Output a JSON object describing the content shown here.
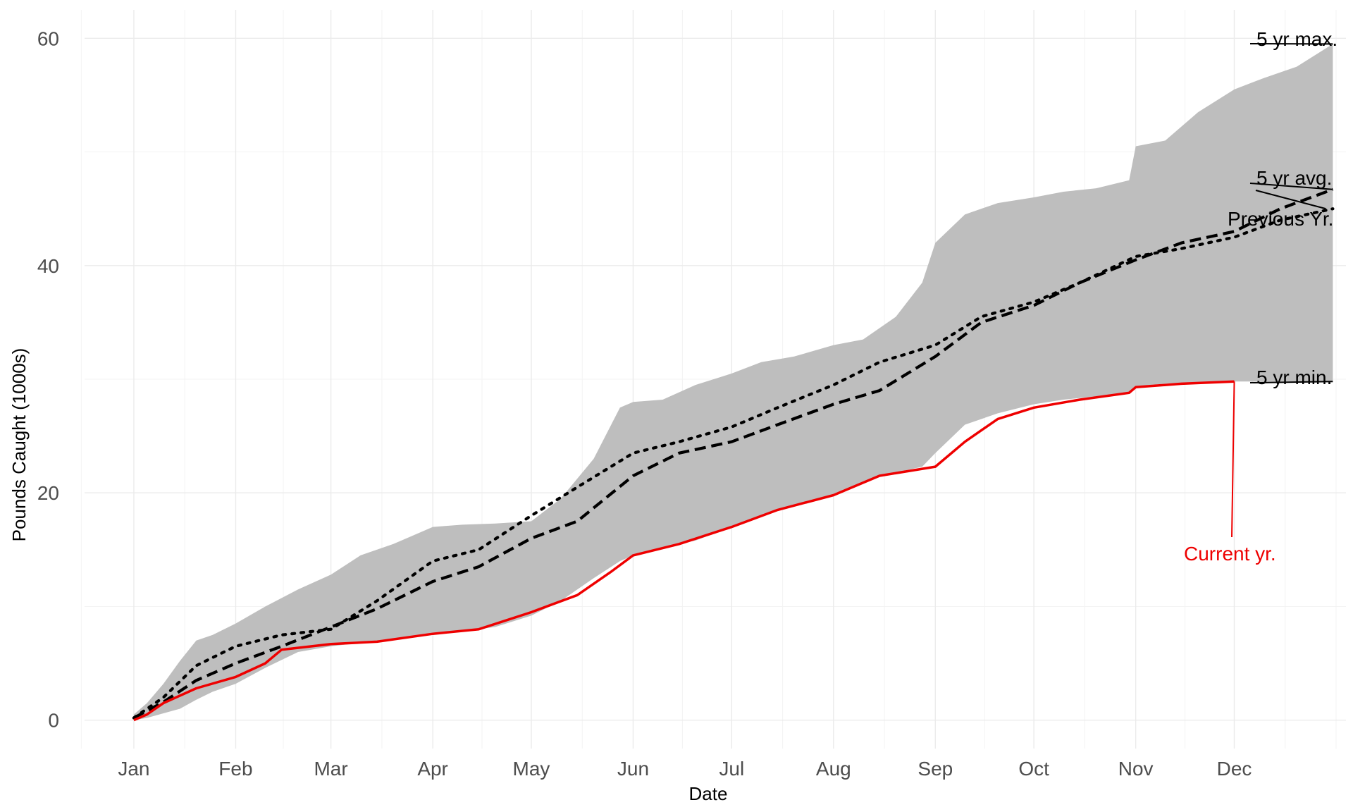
{
  "chart_data": {
    "type": "area",
    "xlabel": "Date",
    "ylabel": "Pounds Caught (1000s)",
    "xlim": [
      "2023-12-17",
      "2025-01-04"
    ],
    "ylim": [
      -2.5,
      62.5
    ],
    "grid": true,
    "x_ticks": [
      {
        "date": "2024-01-01",
        "label": "Jan"
      },
      {
        "date": "2024-02-01",
        "label": "Feb"
      },
      {
        "date": "2024-03-01",
        "label": "Mar"
      },
      {
        "date": "2024-04-01",
        "label": "Apr"
      },
      {
        "date": "2024-05-01",
        "label": "May"
      },
      {
        "date": "2024-06-01",
        "label": "Jun"
      },
      {
        "date": "2024-07-01",
        "label": "Jul"
      },
      {
        "date": "2024-08-01",
        "label": "Aug"
      },
      {
        "date": "2024-09-01",
        "label": "Sep"
      },
      {
        "date": "2024-10-01",
        "label": "Oct"
      },
      {
        "date": "2024-11-01",
        "label": "Nov"
      },
      {
        "date": "2024-12-01",
        "label": "Dec"
      }
    ],
    "y_ticks": [
      {
        "value": 0,
        "label": "0"
      },
      {
        "value": 20,
        "label": "20"
      },
      {
        "value": 40,
        "label": "40"
      },
      {
        "value": 60,
        "label": "60"
      }
    ],
    "ribbon": {
      "color": "#bebebe",
      "dates": [
        "2024-01-01",
        "2024-01-05",
        "2024-01-10",
        "2024-01-15",
        "2024-01-20",
        "2024-01-25",
        "2024-02-01",
        "2024-02-10",
        "2024-02-20",
        "2024-03-01",
        "2024-03-10",
        "2024-03-20",
        "2024-04-01",
        "2024-04-10",
        "2024-04-20",
        "2024-05-01",
        "2024-05-10",
        "2024-05-20",
        "2024-05-28",
        "2024-06-01",
        "2024-06-10",
        "2024-06-20",
        "2024-07-01",
        "2024-07-10",
        "2024-07-20",
        "2024-08-01",
        "2024-08-10",
        "2024-08-20",
        "2024-08-28",
        "2024-09-01",
        "2024-09-10",
        "2024-09-20",
        "2024-10-01",
        "2024-10-10",
        "2024-10-20",
        "2024-10-30",
        "2024-11-01",
        "2024-11-10",
        "2024-11-20",
        "2024-12-01",
        "2024-12-10",
        "2024-12-20",
        "2024-12-31"
      ],
      "upper": [
        0.5,
        1.5,
        3.2,
        5.2,
        7.0,
        7.5,
        8.5,
        10.0,
        11.5,
        12.8,
        14.5,
        15.5,
        17.0,
        17.2,
        17.3,
        17.5,
        19.5,
        23.0,
        27.5,
        28.0,
        28.2,
        29.5,
        30.5,
        31.5,
        32.0,
        33.0,
        33.5,
        35.5,
        38.5,
        42.0,
        44.5,
        45.5,
        46.0,
        46.5,
        46.8,
        47.5,
        50.5,
        51.0,
        53.5,
        55.5,
        56.5,
        57.5,
        59.5
      ],
      "lower": [
        0.0,
        0.2,
        0.6,
        1.0,
        1.8,
        2.5,
        3.2,
        4.6,
        6.0,
        6.5,
        6.8,
        7.2,
        7.6,
        7.8,
        8.2,
        9.2,
        10.5,
        12.5,
        14.0,
        14.5,
        15.2,
        15.8,
        17.0,
        18.0,
        18.8,
        19.8,
        21.0,
        21.8,
        22.3,
        23.5,
        26.0,
        27.0,
        27.8,
        28.2,
        28.5,
        28.8,
        29.4,
        29.6,
        29.7,
        29.8,
        29.8,
        29.8,
        29.8
      ]
    },
    "series": [
      {
        "name": "5 yr avg.",
        "color": "#000000",
        "style": "dashed",
        "dates": [
          "2024-01-01",
          "2024-01-10",
          "2024-01-20",
          "2024-02-01",
          "2024-02-15",
          "2024-03-01",
          "2024-03-15",
          "2024-04-01",
          "2024-04-15",
          "2024-05-01",
          "2024-05-15",
          "2024-06-01",
          "2024-06-15",
          "2024-07-01",
          "2024-07-15",
          "2024-08-01",
          "2024-08-15",
          "2024-09-01",
          "2024-09-15",
          "2024-10-01",
          "2024-10-15",
          "2024-11-01",
          "2024-11-15",
          "2024-12-01",
          "2024-12-15",
          "2024-12-31"
        ],
        "values": [
          0.2,
          1.6,
          3.5,
          5.0,
          6.5,
          8.2,
          9.8,
          12.2,
          13.5,
          16.0,
          17.5,
          21.5,
          23.5,
          24.5,
          26.0,
          27.8,
          29.0,
          32.0,
          35.0,
          36.5,
          38.5,
          40.5,
          42.0,
          43.0,
          45.0,
          46.7
        ]
      },
      {
        "name": "Previous Yr.",
        "color": "#000000",
        "style": "dotted",
        "dates": [
          "2024-01-01",
          "2024-01-10",
          "2024-01-20",
          "2024-02-01",
          "2024-02-15",
          "2024-03-01",
          "2024-03-15",
          "2024-04-01",
          "2024-04-15",
          "2024-05-01",
          "2024-05-15",
          "2024-06-01",
          "2024-06-15",
          "2024-07-01",
          "2024-07-15",
          "2024-08-01",
          "2024-08-15",
          "2024-09-01",
          "2024-09-15",
          "2024-10-01",
          "2024-10-15",
          "2024-11-01",
          "2024-11-15",
          "2024-12-01",
          "2024-12-15",
          "2024-12-31"
        ],
        "values": [
          0.2,
          2.0,
          4.8,
          6.5,
          7.5,
          8.0,
          10.5,
          14.0,
          15.0,
          18.0,
          20.5,
          23.5,
          24.5,
          25.8,
          27.5,
          29.5,
          31.5,
          33.0,
          35.5,
          36.8,
          38.5,
          40.8,
          41.5,
          42.5,
          44.0,
          45.0
        ]
      },
      {
        "name": "Current yr.",
        "color": "#ee0000",
        "style": "solid",
        "dates": [
          "2024-01-01",
          "2024-01-05",
          "2024-01-10",
          "2024-01-20",
          "2024-02-01",
          "2024-02-10",
          "2024-02-15",
          "2024-03-01",
          "2024-03-15",
          "2024-04-01",
          "2024-04-15",
          "2024-05-01",
          "2024-05-15",
          "2024-05-25",
          "2024-06-01",
          "2024-06-15",
          "2024-07-01",
          "2024-07-15",
          "2024-08-01",
          "2024-08-15",
          "2024-09-01",
          "2024-09-10",
          "2024-09-20",
          "2024-10-01",
          "2024-10-15",
          "2024-10-30",
          "2024-11-01",
          "2024-11-15",
          "2024-12-01"
        ],
        "values": [
          0.0,
          0.5,
          1.5,
          2.8,
          3.8,
          5.0,
          6.2,
          6.7,
          6.9,
          7.6,
          8.0,
          9.5,
          11.0,
          13.0,
          14.5,
          15.5,
          17.0,
          18.5,
          19.8,
          21.5,
          22.3,
          24.5,
          26.5,
          27.5,
          28.2,
          28.8,
          29.3,
          29.6,
          29.8
        ]
      }
    ],
    "annotations": [
      {
        "label": "5 yr max.",
        "value": 59.5,
        "color": "#000000"
      },
      {
        "label": "5 yr avg.",
        "value": 46.7,
        "color": "#000000"
      },
      {
        "label": "Previous Yr.",
        "value": 45.0,
        "color": "#000000"
      },
      {
        "label": "5 yr min.",
        "value": 29.8,
        "color": "#000000"
      },
      {
        "label": "Current yr.",
        "value": 29.8,
        "color": "#ee0000"
      }
    ]
  }
}
